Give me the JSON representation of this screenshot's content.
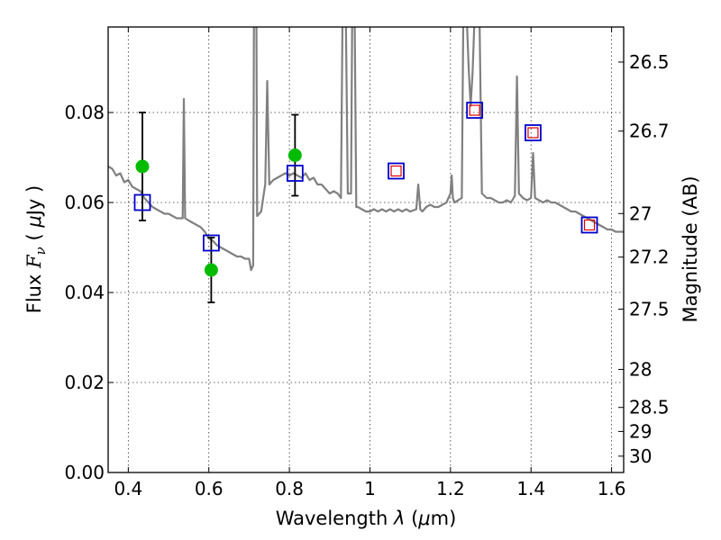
{
  "chart_data": {
    "type": "scatter",
    "xlabel": "Wavelength",
    "xlabel_symbol": "λ",
    "xlabel_unit_open": "(",
    "xlabel_unit_mu": "μ",
    "xlabel_unit_rest": "m)",
    "ylabel_prefix": "Flux",
    "ylabel_F": "F",
    "ylabel_nu": "ν",
    "ylabel_unit_open": "(",
    "ylabel_unit_mu": "μ",
    "ylabel_unit_rest": "Jy",
    "ylabel_unit_close": ")",
    "y2label": "Magnitude (AB)",
    "xlim": [
      0.35,
      1.63
    ],
    "ylim": [
      0.0,
      0.099
    ],
    "xticks": [
      {
        "v": 0.4,
        "label": "0.4"
      },
      {
        "v": 0.6,
        "label": "0.6"
      },
      {
        "v": 0.8,
        "label": "0.8"
      },
      {
        "v": 1.0,
        "label": "1"
      },
      {
        "v": 1.2,
        "label": "1.2"
      },
      {
        "v": 1.4,
        "label": "1.4"
      },
      {
        "v": 1.6,
        "label": "1.6"
      }
    ],
    "yticks": [
      {
        "v": 0.0,
        "label": "0.00"
      },
      {
        "v": 0.02,
        "label": "0.02"
      },
      {
        "v": 0.04,
        "label": "0.04"
      },
      {
        "v": 0.06,
        "label": "0.06"
      },
      {
        "v": 0.08,
        "label": "0.08"
      }
    ],
    "mag_ticks": [
      {
        "v": 26.5,
        "label": "26.5"
      },
      {
        "v": 26.7,
        "label": "26.7"
      },
      {
        "v": 27.0,
        "label": "27"
      },
      {
        "v": 27.2,
        "label": "27.2"
      },
      {
        "v": 27.5,
        "label": "27.5"
      },
      {
        "v": 28.0,
        "label": "28"
      },
      {
        "v": 28.5,
        "label": "28.5"
      },
      {
        "v": 29.0,
        "label": "29"
      },
      {
        "v": 30.0,
        "label": "30"
      }
    ],
    "colors": {
      "spectrum": "#808080",
      "observed": "#00bb00",
      "model": "#0000cc",
      "extra": "#dd0000",
      "errorbar": "#000000"
    },
    "spectrum": [
      [
        0.35,
        0.068
      ],
      [
        0.36,
        0.0675
      ],
      [
        0.37,
        0.066
      ],
      [
        0.38,
        0.0665
      ],
      [
        0.39,
        0.0645
      ],
      [
        0.4,
        0.065
      ],
      [
        0.41,
        0.0635
      ],
      [
        0.42,
        0.063
      ],
      [
        0.43,
        0.0625
      ],
      [
        0.44,
        0.061
      ],
      [
        0.45,
        0.06
      ],
      [
        0.46,
        0.059
      ],
      [
        0.47,
        0.0585
      ],
      [
        0.48,
        0.058
      ],
      [
        0.49,
        0.0575
      ],
      [
        0.5,
        0.0575
      ],
      [
        0.51,
        0.057
      ],
      [
        0.52,
        0.0565
      ],
      [
        0.53,
        0.0565
      ],
      [
        0.535,
        0.0565
      ],
      [
        0.538,
        0.083
      ],
      [
        0.541,
        0.0565
      ],
      [
        0.55,
        0.056
      ],
      [
        0.56,
        0.0555
      ],
      [
        0.57,
        0.055
      ],
      [
        0.58,
        0.0545
      ],
      [
        0.59,
        0.0535
      ],
      [
        0.6,
        0.052
      ],
      [
        0.61,
        0.0515
      ],
      [
        0.62,
        0.0505
      ],
      [
        0.63,
        0.05
      ],
      [
        0.64,
        0.0495
      ],
      [
        0.65,
        0.049
      ],
      [
        0.66,
        0.0485
      ],
      [
        0.67,
        0.048
      ],
      [
        0.68,
        0.048
      ],
      [
        0.69,
        0.0475
      ],
      [
        0.7,
        0.0475
      ],
      [
        0.705,
        0.045
      ],
      [
        0.71,
        0.046
      ],
      [
        0.712,
        0.102
      ],
      [
        0.718,
        0.102
      ],
      [
        0.72,
        0.057
      ],
      [
        0.73,
        0.058
      ],
      [
        0.735,
        0.061
      ],
      [
        0.74,
        0.064
      ],
      [
        0.745,
        0.087
      ],
      [
        0.75,
        0.064
      ],
      [
        0.76,
        0.065
      ],
      [
        0.77,
        0.0655
      ],
      [
        0.78,
        0.066
      ],
      [
        0.79,
        0.0665
      ],
      [
        0.8,
        0.066
      ],
      [
        0.81,
        0.0665
      ],
      [
        0.82,
        0.066
      ],
      [
        0.83,
        0.0655
      ],
      [
        0.84,
        0.0665
      ],
      [
        0.85,
        0.065
      ],
      [
        0.86,
        0.0655
      ],
      [
        0.87,
        0.064
      ],
      [
        0.88,
        0.064
      ],
      [
        0.89,
        0.063
      ],
      [
        0.9,
        0.062
      ],
      [
        0.91,
        0.0625
      ],
      [
        0.92,
        0.062
      ],
      [
        0.928,
        0.061
      ],
      [
        0.932,
        0.102
      ],
      [
        0.94,
        0.102
      ],
      [
        0.945,
        0.062
      ],
      [
        0.953,
        0.062
      ],
      [
        0.956,
        0.102
      ],
      [
        0.962,
        0.102
      ],
      [
        0.966,
        0.059
      ],
      [
        0.97,
        0.059
      ],
      [
        0.98,
        0.0585
      ],
      [
        0.99,
        0.058
      ],
      [
        1.0,
        0.058
      ],
      [
        1.01,
        0.0585
      ],
      [
        1.02,
        0.058
      ],
      [
        1.03,
        0.0585
      ],
      [
        1.04,
        0.058
      ],
      [
        1.05,
        0.0585
      ],
      [
        1.06,
        0.058
      ],
      [
        1.07,
        0.0585
      ],
      [
        1.08,
        0.058
      ],
      [
        1.09,
        0.0585
      ],
      [
        1.1,
        0.058
      ],
      [
        1.115,
        0.0585
      ],
      [
        1.12,
        0.064
      ],
      [
        1.125,
        0.0585
      ],
      [
        1.13,
        0.058
      ],
      [
        1.14,
        0.059
      ],
      [
        1.15,
        0.0595
      ],
      [
        1.16,
        0.059
      ],
      [
        1.17,
        0.059
      ],
      [
        1.18,
        0.0595
      ],
      [
        1.19,
        0.06
      ],
      [
        1.2,
        0.062
      ],
      [
        1.203,
        0.066
      ],
      [
        1.206,
        0.061
      ],
      [
        1.21,
        0.06
      ],
      [
        1.228,
        0.061
      ],
      [
        1.232,
        0.102
      ],
      [
        1.24,
        0.102
      ],
      [
        1.245,
        0.09
      ],
      [
        1.25,
        0.0815
      ],
      [
        1.255,
        0.089
      ],
      [
        1.26,
        0.102
      ],
      [
        1.272,
        0.102
      ],
      [
        1.278,
        0.062
      ],
      [
        1.29,
        0.061
      ],
      [
        1.3,
        0.061
      ],
      [
        1.31,
        0.0605
      ],
      [
        1.32,
        0.06
      ],
      [
        1.33,
        0.06
      ],
      [
        1.34,
        0.0605
      ],
      [
        1.35,
        0.06
      ],
      [
        1.36,
        0.0615
      ],
      [
        1.365,
        0.088
      ],
      [
        1.37,
        0.062
      ],
      [
        1.38,
        0.061
      ],
      [
        1.39,
        0.0605
      ],
      [
        1.4,
        0.061
      ],
      [
        1.405,
        0.071
      ],
      [
        1.41,
        0.061
      ],
      [
        1.42,
        0.0605
      ],
      [
        1.43,
        0.06
      ],
      [
        1.44,
        0.0605
      ],
      [
        1.45,
        0.06
      ],
      [
        1.46,
        0.06
      ],
      [
        1.47,
        0.0595
      ],
      [
        1.48,
        0.059
      ],
      [
        1.49,
        0.0585
      ],
      [
        1.5,
        0.058
      ],
      [
        1.51,
        0.058
      ],
      [
        1.52,
        0.0575
      ],
      [
        1.53,
        0.057
      ],
      [
        1.54,
        0.0565
      ],
      [
        1.55,
        0.056
      ],
      [
        1.56,
        0.0555
      ],
      [
        1.57,
        0.055
      ],
      [
        1.58,
        0.0545
      ],
      [
        1.59,
        0.054
      ],
      [
        1.6,
        0.054
      ],
      [
        1.61,
        0.0535
      ],
      [
        1.62,
        0.0535
      ],
      [
        1.63,
        0.0535
      ]
    ],
    "observed": [
      {
        "x": 0.435,
        "y": 0.068,
        "err": 0.012
      },
      {
        "x": 0.606,
        "y": 0.045,
        "err": 0.0072
      },
      {
        "x": 0.814,
        "y": 0.0705,
        "err": 0.009
      }
    ],
    "model_squares": [
      {
        "x": 0.435,
        "y": 0.06
      },
      {
        "x": 0.606,
        "y": 0.051
      },
      {
        "x": 0.814,
        "y": 0.0665
      },
      {
        "x": 1.065,
        "y": 0.067
      },
      {
        "x": 1.26,
        "y": 0.0805
      },
      {
        "x": 1.405,
        "y": 0.0755
      },
      {
        "x": 1.545,
        "y": 0.055
      }
    ],
    "extra_squares": [
      {
        "x": 1.065,
        "y": 0.067
      },
      {
        "x": 1.26,
        "y": 0.0805
      },
      {
        "x": 1.405,
        "y": 0.0755
      },
      {
        "x": 1.545,
        "y": 0.055
      }
    ]
  }
}
